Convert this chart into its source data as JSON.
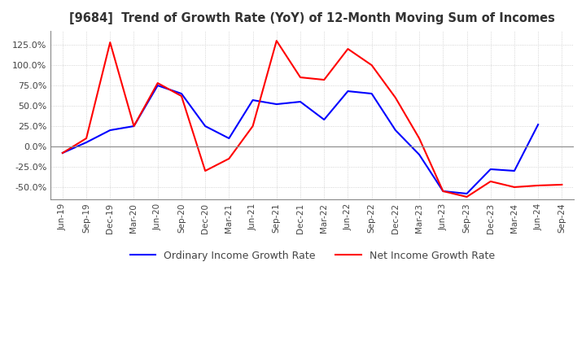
{
  "title": "[9684]  Trend of Growth Rate (YoY) of 12-Month Moving Sum of Incomes",
  "ylim": [
    -65,
    142
  ],
  "yticks": [
    -50,
    -25,
    0,
    25,
    50,
    75,
    100,
    125
  ],
  "background_color": "#ffffff",
  "grid_color": "#c8c8c8",
  "legend_labels": [
    "Ordinary Income Growth Rate",
    "Net Income Growth Rate"
  ],
  "line_colors": [
    "#0000ff",
    "#ff0000"
  ],
  "x_labels": [
    "Jun-19",
    "Sep-19",
    "Dec-19",
    "Mar-20",
    "Jun-20",
    "Sep-20",
    "Dec-20",
    "Mar-21",
    "Jun-21",
    "Sep-21",
    "Dec-21",
    "Mar-22",
    "Jun-22",
    "Sep-22",
    "Dec-22",
    "Mar-23",
    "Jun-23",
    "Sep-23",
    "Dec-23",
    "Mar-24",
    "Jun-24",
    "Sep-24"
  ],
  "ordinary_income": [
    -8,
    5,
    20,
    25,
    75,
    65,
    25,
    10,
    57,
    52,
    55,
    33,
    68,
    65,
    20,
    -10,
    -55,
    -58,
    -28,
    -30,
    27,
    null
  ],
  "net_income": [
    -8,
    10,
    128,
    25,
    78,
    62,
    -30,
    -15,
    25,
    130,
    85,
    82,
    120,
    100,
    60,
    10,
    -55,
    -62,
    -43,
    -50,
    -48,
    -47
  ]
}
